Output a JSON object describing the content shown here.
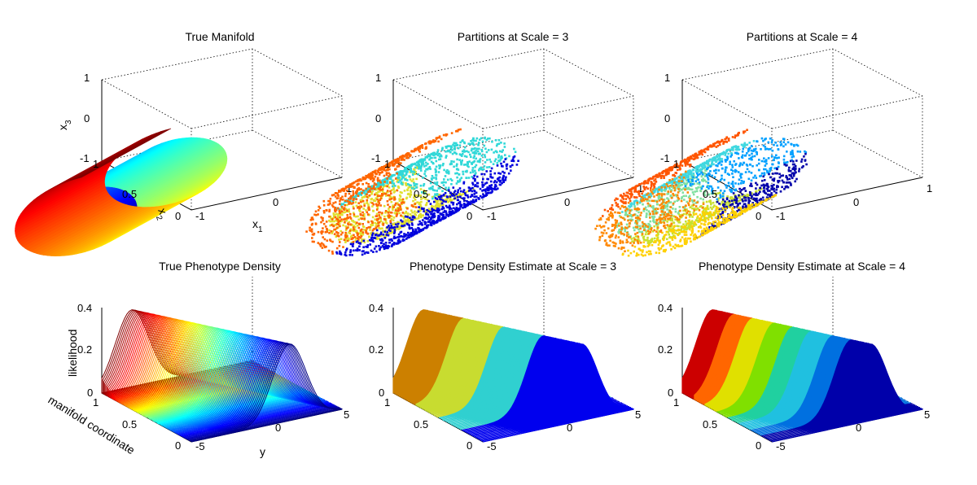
{
  "chart_data": [
    {
      "type": "surface3d",
      "title": "True Manifold",
      "xlabel": "x1",
      "ylabel": "x2",
      "zlabel": "x3",
      "x_ticks": [
        "-1",
        "0",
        "1"
      ],
      "y_ticks": [
        "0",
        "0.5",
        "1"
      ],
      "z_ticks": [
        "-1",
        "0",
        "1"
      ],
      "xlim": [
        -1,
        1
      ],
      "ylim": [
        0,
        1
      ],
      "zlim": [
        -1,
        1
      ],
      "colormap": "jet",
      "render": "continuous"
    },
    {
      "type": "scatter3d",
      "title": "Partitions at Scale = 3",
      "x_ticks": [
        "-1",
        "0",
        "1"
      ],
      "y_ticks": [
        "0",
        "0.5",
        "1"
      ],
      "z_ticks": [
        "-1",
        "0",
        "1"
      ],
      "xlim": [
        -1,
        1
      ],
      "ylim": [
        0,
        1
      ],
      "zlim": [
        -1,
        1
      ],
      "partitions": 4,
      "partition_colors": [
        "#e0e030",
        "#30d8d8",
        "#0000dd",
        "#ff6600"
      ]
    },
    {
      "type": "scatter3d",
      "title": "Partitions at Scale = 4",
      "x_ticks": [
        "-1",
        "0",
        "1"
      ],
      "y_ticks": [
        "0",
        "0.5",
        "1"
      ],
      "z_ticks": [
        "-1",
        "0",
        "1"
      ],
      "xlim": [
        -1,
        1
      ],
      "ylim": [
        0,
        1
      ],
      "zlim": [
        -1,
        1
      ],
      "partitions": 8,
      "partition_colors": [
        "#c8e030",
        "#80e0a0",
        "#40d8e0",
        "#00a0ff",
        "#0000aa",
        "#ffd000",
        "#ff8800",
        "#ff5500"
      ]
    },
    {
      "type": "ridge3d",
      "title": "True Phenotype Density",
      "xlabel": "y",
      "ylabel": "manifold coordinate",
      "zlabel": "likelihood",
      "x_ticks": [
        "-5",
        "0",
        "5"
      ],
      "y_ticks": [
        "0",
        "0.5",
        "1"
      ],
      "z_ticks": [
        "0",
        "0.2",
        "0.4"
      ],
      "xlim": [
        -5,
        5
      ],
      "ylim": [
        0,
        1
      ],
      "zlim": [
        0,
        0.4
      ],
      "colormap": "jet",
      "render": "continuous"
    },
    {
      "type": "ridge3d",
      "title": "Phenotype Density Estimate at Scale = 3",
      "x_ticks": [
        "-5",
        "0",
        "5"
      ],
      "y_ticks": [
        "0",
        "0.5",
        "1"
      ],
      "z_ticks": [
        "0",
        "0.2",
        "0.4"
      ],
      "xlim": [
        -5,
        5
      ],
      "ylim": [
        0,
        1
      ],
      "zlim": [
        0,
        0.4
      ],
      "bands": 4,
      "band_colors": [
        "#cc8000",
        "#c8dc30",
        "#30d0d0",
        "#0000ee"
      ]
    },
    {
      "type": "ridge3d",
      "title": "Phenotype Density Estimate at Scale = 4",
      "x_ticks": [
        "-5",
        "0",
        "5"
      ],
      "y_ticks": [
        "0",
        "0.5",
        "1"
      ],
      "z_ticks": [
        "0",
        "0.2",
        "0.4"
      ],
      "xlim": [
        -5,
        5
      ],
      "ylim": [
        0,
        1
      ],
      "zlim": [
        0,
        0.4
      ],
      "bands": 8,
      "band_colors": [
        "#cc0000",
        "#ff6600",
        "#e0e000",
        "#80e000",
        "#20d0a0",
        "#20c0e0",
        "#0070e0",
        "#0000aa"
      ]
    }
  ]
}
